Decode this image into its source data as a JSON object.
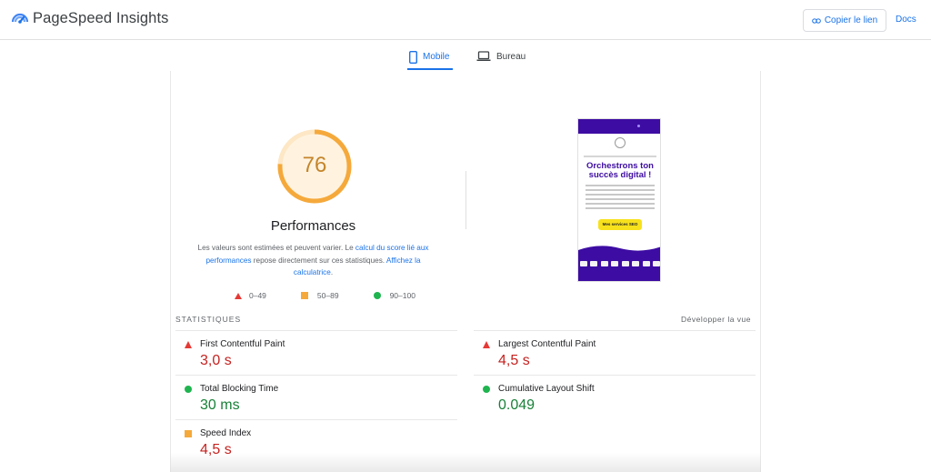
{
  "header": {
    "title": "PageSpeed Insights",
    "copy_link_label": "Copier le lien",
    "docs_label": "Docs"
  },
  "tabs": [
    {
      "label": "Mobile",
      "active": true
    },
    {
      "label": "Bureau",
      "active": false
    }
  ],
  "score": {
    "value": 76,
    "fraction": 0.76,
    "color": "#f5a93b",
    "category": "Performances"
  },
  "description": {
    "part1": "Les valeurs sont estimées et peuvent varier. Le ",
    "link1": "calcul du score lié aux performances",
    "part2": " repose directement sur ces statistiques. ",
    "link2": "Affichez la calculatrice",
    "part3": "."
  },
  "legend": [
    {
      "icon": "red-triangle-icon",
      "label": "0–49"
    },
    {
      "icon": "orange-square-icon",
      "label": "50–89"
    },
    {
      "icon": "green-circle-icon",
      "label": "90–100"
    }
  ],
  "preview": {
    "headline": "Orchestrons ton succès digital !",
    "cta": "Mes services SEO"
  },
  "stats": {
    "heading": "STATISTIQUES",
    "expand_label": "Développer la vue",
    "metrics": [
      {
        "label": "First Contentful Paint",
        "value": "3,0 s",
        "status": "poor"
      },
      {
        "label": "Largest Contentful Paint",
        "value": "4,5 s",
        "status": "poor"
      },
      {
        "label": "Total Blocking Time",
        "value": "30 ms",
        "status": "good"
      },
      {
        "label": "Cumulative Layout Shift",
        "value": "0.049",
        "status": "good"
      },
      {
        "label": "Speed Index",
        "value": "4,5 s",
        "status": "average"
      }
    ]
  },
  "colors": {
    "accent": "#1a73e8",
    "poor": "#c5221f",
    "good": "#188038",
    "average": "#f5a93b",
    "brand_purple": "#3d0ca3"
  }
}
